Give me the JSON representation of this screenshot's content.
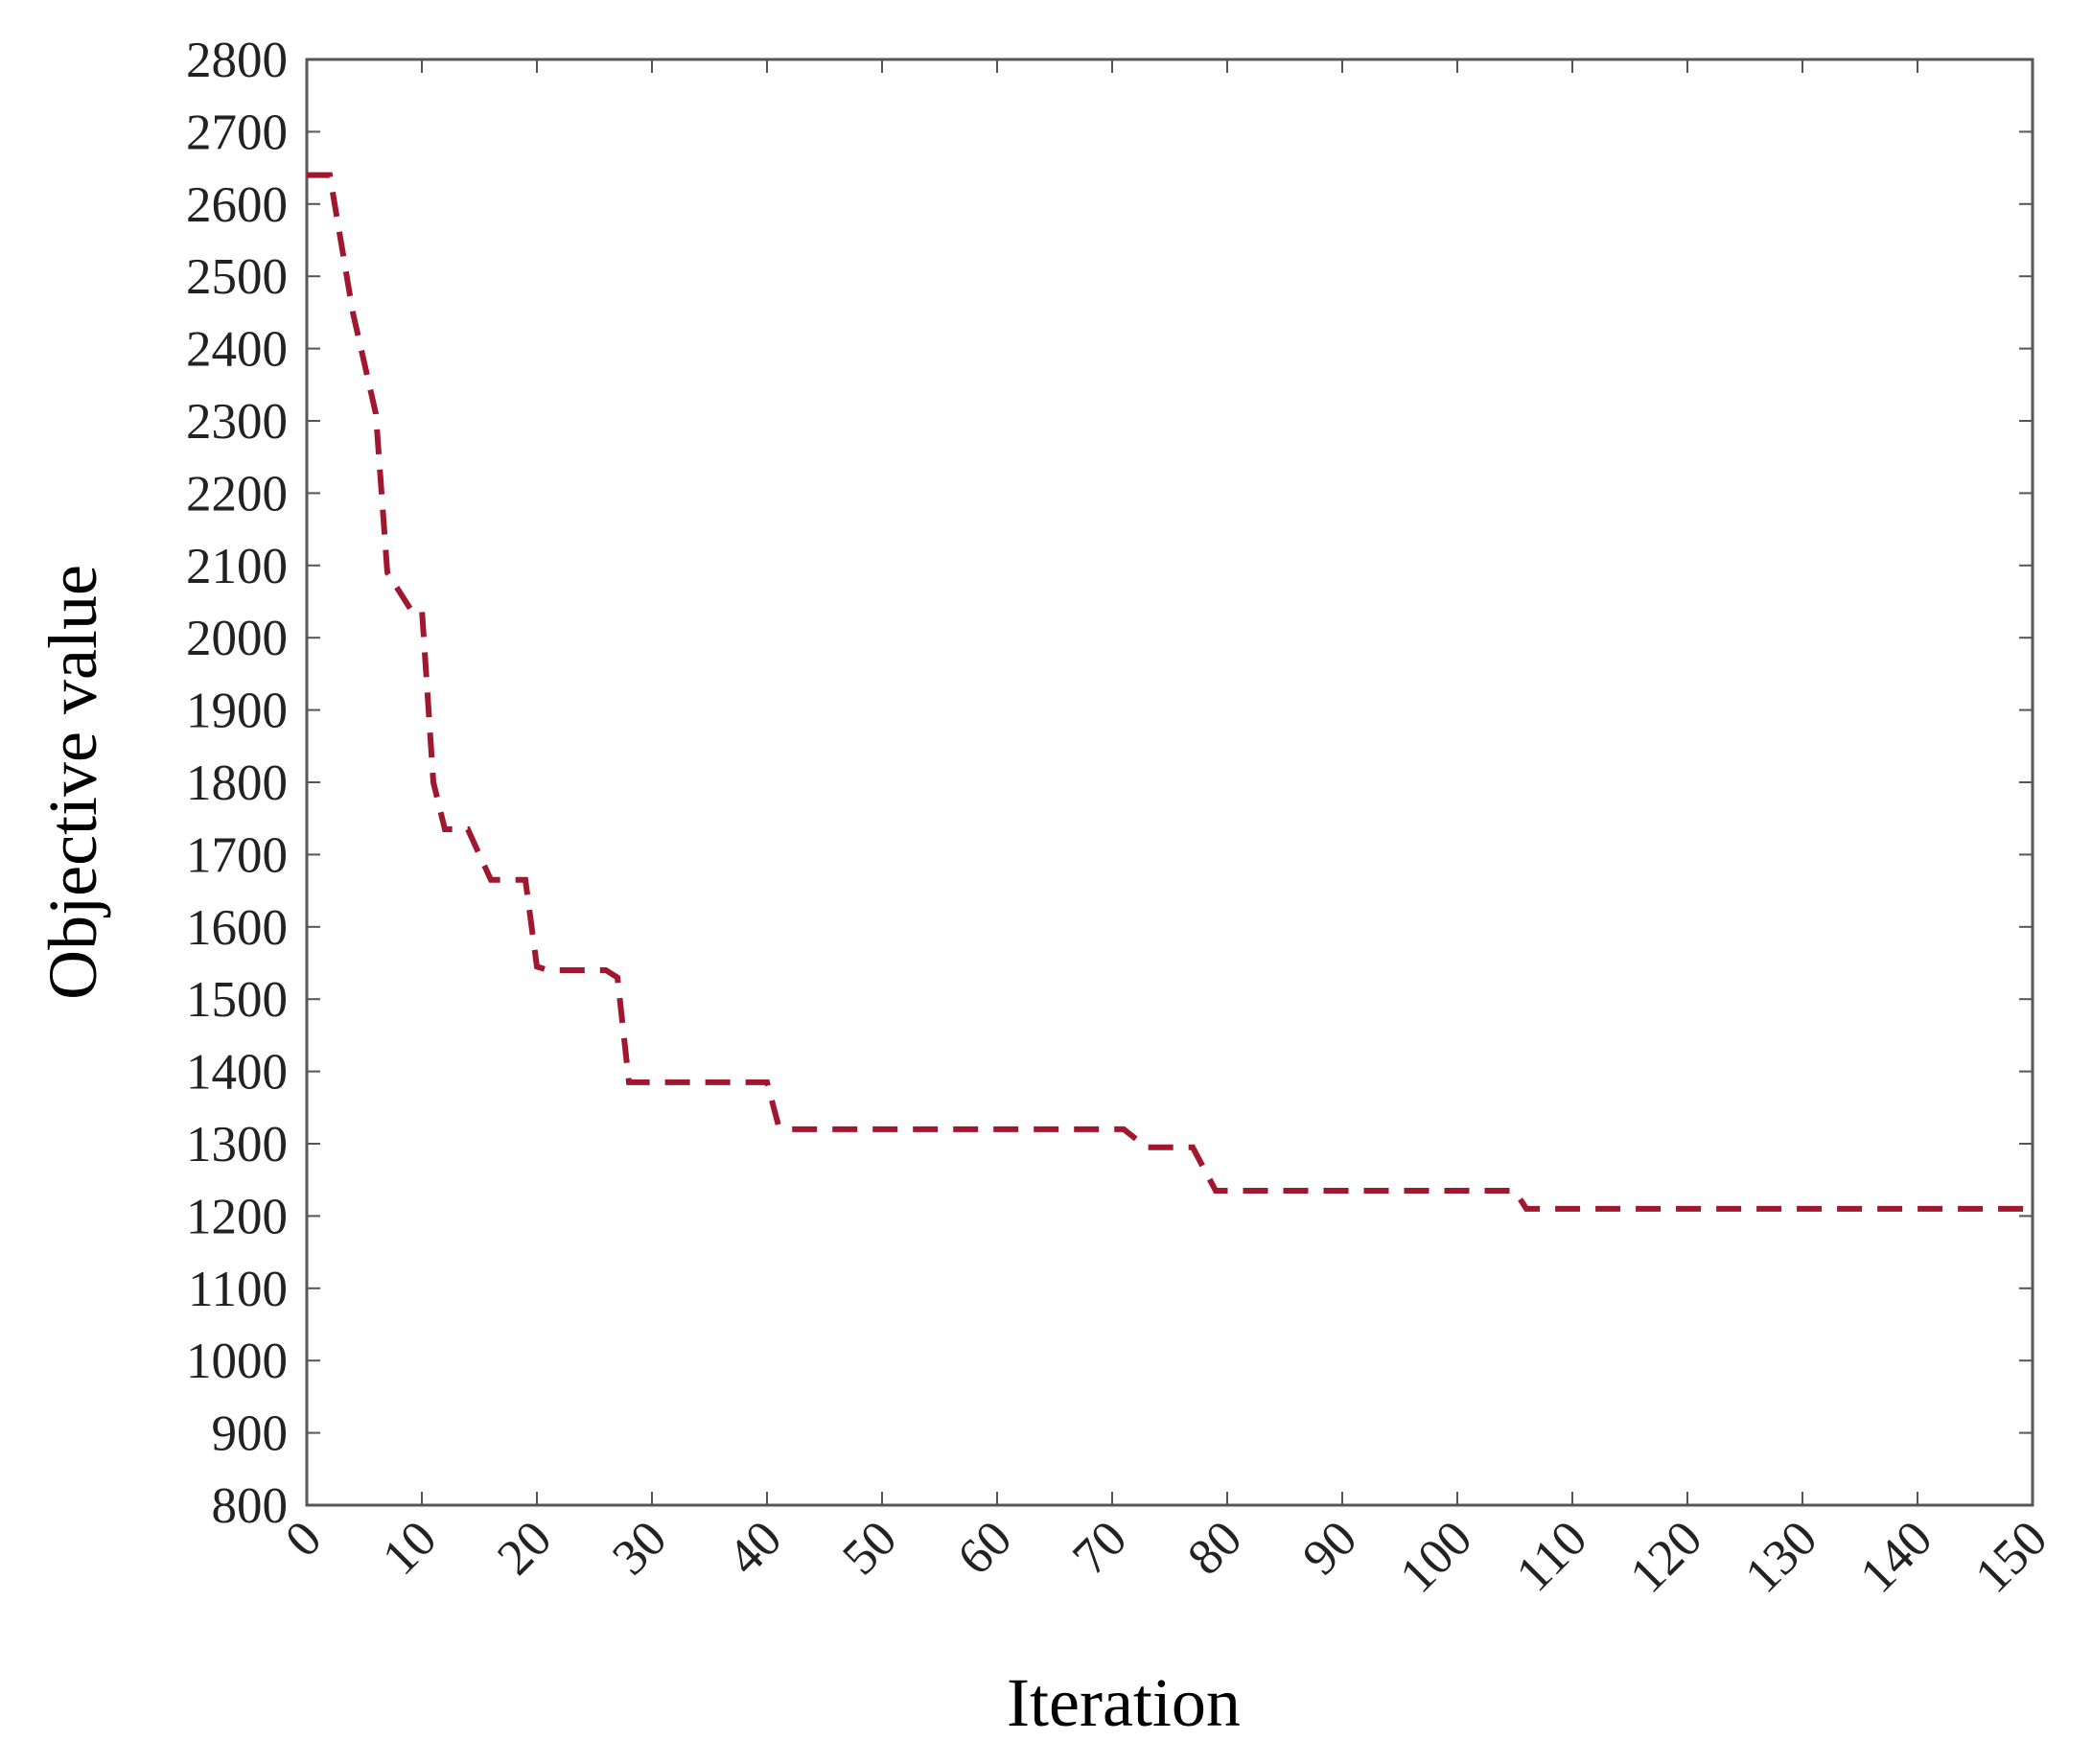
{
  "chart_data": {
    "type": "line",
    "title": "",
    "xlabel": "Iteration",
    "ylabel": "Objective value",
    "xlim": [
      0,
      150
    ],
    "ylim": [
      800,
      2800
    ],
    "xticks": [
      0,
      10,
      20,
      30,
      40,
      50,
      60,
      70,
      80,
      90,
      100,
      110,
      120,
      130,
      140,
      150
    ],
    "yticks": [
      800,
      900,
      1000,
      1100,
      1200,
      1300,
      1400,
      1500,
      1600,
      1700,
      1800,
      1900,
      2000,
      2100,
      2200,
      2300,
      2400,
      2500,
      2600,
      2700,
      2800
    ],
    "grid": false,
    "legend": "none",
    "series": [
      {
        "line_style": "dashed",
        "color": "#a01830",
        "points": [
          [
            0,
            2640
          ],
          [
            2,
            2640
          ],
          [
            4,
            2450
          ],
          [
            6,
            2310
          ],
          [
            7,
            2090
          ],
          [
            9,
            2040
          ],
          [
            10,
            2040
          ],
          [
            11,
            1800
          ],
          [
            12,
            1735
          ],
          [
            14,
            1735
          ],
          [
            16,
            1665
          ],
          [
            19,
            1665
          ],
          [
            20,
            1545
          ],
          [
            21,
            1540
          ],
          [
            26,
            1540
          ],
          [
            27,
            1530
          ],
          [
            28,
            1385
          ],
          [
            40,
            1385
          ],
          [
            41,
            1325
          ],
          [
            42,
            1320
          ],
          [
            71,
            1320
          ],
          [
            73,
            1295
          ],
          [
            77,
            1295
          ],
          [
            79,
            1235
          ],
          [
            105,
            1235
          ],
          [
            106,
            1210
          ],
          [
            150,
            1210
          ]
        ]
      }
    ]
  }
}
